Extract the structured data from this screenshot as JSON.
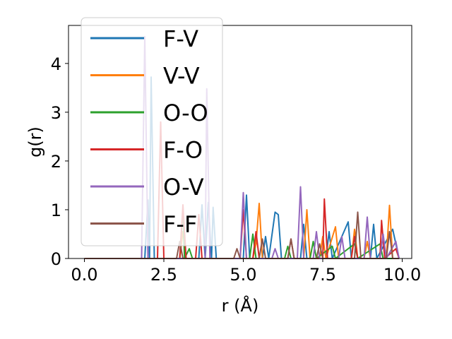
{
  "chart_data": {
    "type": "line",
    "xlabel": "r (Å)",
    "ylabel": "g(r)",
    "xlim": [
      -0.5,
      10.3
    ],
    "ylim": [
      0,
      4.78
    ],
    "xticks": [
      0.0,
      2.5,
      5.0,
      7.5,
      10.0
    ],
    "xtick_labels": [
      "0.0",
      "2.5",
      "5.0",
      "7.5",
      "10.0"
    ],
    "yticks": [
      0,
      1,
      2,
      3,
      4
    ],
    "ytick_labels": [
      "0",
      "1",
      "2",
      "3",
      "4"
    ],
    "grid": false,
    "legend_position": "upper-left",
    "series": [
      {
        "name": "F-V",
        "color": "#1f77b4",
        "points": [
          [
            0,
            0
          ],
          [
            1.9,
            0
          ],
          [
            2.0,
            1.2
          ],
          [
            2.05,
            0
          ],
          [
            2.1,
            3.72
          ],
          [
            2.2,
            0
          ],
          [
            3.6,
            0
          ],
          [
            3.7,
            1.1
          ],
          [
            3.8,
            0
          ],
          [
            3.9,
            1.15
          ],
          [
            4.0,
            0
          ],
          [
            4.05,
            1.05
          ],
          [
            4.15,
            0
          ],
          [
            5.0,
            0
          ],
          [
            5.1,
            1.3
          ],
          [
            5.2,
            0
          ],
          [
            5.6,
            0
          ],
          [
            5.7,
            0.45
          ],
          [
            5.8,
            0
          ],
          [
            6.0,
            0.95
          ],
          [
            6.1,
            0.9
          ],
          [
            6.2,
            0
          ],
          [
            6.8,
            0
          ],
          [
            6.9,
            0.7
          ],
          [
            7.0,
            0
          ],
          [
            7.6,
            0
          ],
          [
            7.7,
            0.55
          ],
          [
            7.8,
            0
          ],
          [
            8.3,
            0.75
          ],
          [
            8.4,
            0
          ],
          [
            9.0,
            0
          ],
          [
            9.1,
            0.7
          ],
          [
            9.2,
            0
          ],
          [
            9.7,
            0.6
          ],
          [
            9.9,
            0
          ]
        ]
      },
      {
        "name": "V-V",
        "color": "#ff7f0e",
        "points": [
          [
            0,
            0
          ],
          [
            3.0,
            0
          ],
          [
            3.1,
            0.55
          ],
          [
            3.2,
            0
          ],
          [
            5.3,
            0
          ],
          [
            5.4,
            0.3
          ],
          [
            5.5,
            1.13
          ],
          [
            5.6,
            0
          ],
          [
            6.9,
            0
          ],
          [
            7.0,
            1.0
          ],
          [
            7.1,
            0
          ],
          [
            7.4,
            0
          ],
          [
            7.5,
            0.45
          ],
          [
            7.6,
            0
          ],
          [
            7.9,
            0.65
          ],
          [
            8.0,
            0
          ],
          [
            8.4,
            0
          ],
          [
            8.5,
            0.6
          ],
          [
            8.6,
            0
          ],
          [
            8.8,
            0
          ],
          [
            8.9,
            0.35
          ],
          [
            9.0,
            0
          ],
          [
            9.5,
            0
          ],
          [
            9.6,
            1.09
          ],
          [
            9.7,
            0
          ],
          [
            9.9,
            0
          ]
        ]
      },
      {
        "name": "O-O",
        "color": "#2ca02c",
        "points": [
          [
            0,
            0
          ],
          [
            3.0,
            0
          ],
          [
            3.1,
            1.0
          ],
          [
            3.15,
            0
          ],
          [
            3.3,
            0.2
          ],
          [
            3.4,
            0
          ],
          [
            5.2,
            0
          ],
          [
            5.3,
            0.5
          ],
          [
            5.4,
            0
          ],
          [
            6.3,
            0
          ],
          [
            6.4,
            0.25
          ],
          [
            6.5,
            0
          ],
          [
            7.1,
            0
          ],
          [
            7.2,
            0.35
          ],
          [
            7.3,
            0
          ],
          [
            7.8,
            0.25
          ],
          [
            7.9,
            0
          ],
          [
            8.5,
            0.3
          ],
          [
            8.6,
            0
          ],
          [
            9.3,
            0.3
          ],
          [
            9.4,
            0
          ],
          [
            9.9,
            0
          ]
        ]
      },
      {
        "name": "F-O",
        "color": "#d62728",
        "points": [
          [
            0,
            0
          ],
          [
            2.3,
            0
          ],
          [
            2.4,
            2.8
          ],
          [
            2.5,
            0
          ],
          [
            3.0,
            0
          ],
          [
            3.1,
            1.1
          ],
          [
            3.2,
            0
          ],
          [
            3.5,
            0
          ],
          [
            3.6,
            0.9
          ],
          [
            3.7,
            0
          ],
          [
            4.9,
            0
          ],
          [
            5.0,
            1.0
          ],
          [
            5.1,
            0
          ],
          [
            5.3,
            0
          ],
          [
            5.4,
            0.55
          ],
          [
            5.5,
            0
          ],
          [
            6.4,
            0
          ],
          [
            6.5,
            0.4
          ],
          [
            6.6,
            0
          ],
          [
            7.5,
            0
          ],
          [
            7.55,
            1.22
          ],
          [
            7.65,
            0
          ],
          [
            8.4,
            0
          ],
          [
            8.5,
            0.45
          ],
          [
            8.6,
            0
          ],
          [
            9.3,
            0
          ],
          [
            9.35,
            0.78
          ],
          [
            9.45,
            0
          ],
          [
            9.8,
            0.2
          ],
          [
            9.9,
            0
          ]
        ]
      },
      {
        "name": "O-V",
        "color": "#9467bd",
        "points": [
          [
            0,
            0
          ],
          [
            1.8,
            0
          ],
          [
            1.9,
            4.55
          ],
          [
            2.0,
            0
          ],
          [
            3.8,
            0
          ],
          [
            3.85,
            3.48
          ],
          [
            3.95,
            0
          ],
          [
            4.9,
            0
          ],
          [
            5.0,
            1.35
          ],
          [
            5.1,
            0
          ],
          [
            5.9,
            0
          ],
          [
            6.0,
            0.2
          ],
          [
            6.1,
            0
          ],
          [
            6.7,
            0
          ],
          [
            6.8,
            1.47
          ],
          [
            6.9,
            0
          ],
          [
            7.2,
            0
          ],
          [
            7.3,
            0.55
          ],
          [
            7.4,
            0
          ],
          [
            8.0,
            0
          ],
          [
            8.1,
            0.45
          ],
          [
            8.2,
            0
          ],
          [
            8.8,
            0
          ],
          [
            8.9,
            0.85
          ],
          [
            9.0,
            0
          ],
          [
            9.3,
            0
          ],
          [
            9.4,
            0.5
          ],
          [
            9.5,
            0
          ],
          [
            9.8,
            0.35
          ],
          [
            9.9,
            0
          ]
        ]
      },
      {
        "name": "F-F",
        "color": "#8c564b",
        "points": [
          [
            0,
            0
          ],
          [
            2.9,
            0
          ],
          [
            3.0,
            0.35
          ],
          [
            3.1,
            0
          ],
          [
            4.7,
            0
          ],
          [
            4.8,
            0.2
          ],
          [
            4.9,
            0
          ],
          [
            5.5,
            0
          ],
          [
            5.6,
            0.4
          ],
          [
            5.7,
            0
          ],
          [
            6.4,
            0
          ],
          [
            6.5,
            0.4
          ],
          [
            6.6,
            0
          ],
          [
            7.3,
            0
          ],
          [
            7.4,
            0.3
          ],
          [
            7.5,
            0
          ],
          [
            8.5,
            0
          ],
          [
            8.6,
            0.95
          ],
          [
            8.7,
            0
          ],
          [
            9.5,
            0
          ],
          [
            9.6,
            0.55
          ],
          [
            9.7,
            0
          ],
          [
            9.9,
            0
          ]
        ]
      }
    ]
  }
}
